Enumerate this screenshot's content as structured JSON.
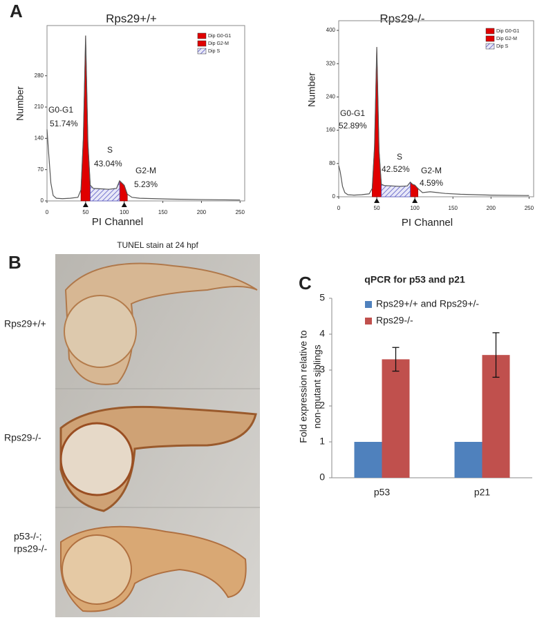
{
  "figure": {
    "panel_labels": [
      "A",
      "B",
      "C"
    ]
  },
  "tunel": {
    "title": "TUNEL stain at 24 hpf",
    "rows": [
      {
        "lines": [
          "Rps29+/+"
        ]
      },
      {
        "lines": [
          "Rps29-/-"
        ]
      },
      {
        "lines": [
          "p53-/-;",
          "rps29-/-"
        ]
      }
    ]
  },
  "chart_data": [
    {
      "type": "line",
      "title": "Rps29+/+",
      "x_label": "PI Channel",
      "y_label": "Number",
      "x": [
        0,
        2,
        5,
        8,
        12,
        20,
        30,
        40,
        44,
        47,
        50,
        53,
        56,
        60,
        70,
        80,
        90,
        94,
        97,
        100,
        104,
        110,
        120,
        140,
        160,
        200,
        250
      ],
      "values": [
        160,
        110,
        40,
        12,
        6,
        5,
        6,
        8,
        25,
        140,
        370,
        130,
        35,
        28,
        27,
        26,
        28,
        45,
        40,
        35,
        15,
        8,
        6,
        5,
        4,
        3,
        2
      ],
      "color": "#555555",
      "xlim": [
        0,
        256
      ],
      "xticks": [
        0,
        50,
        100,
        150,
        200,
        250
      ],
      "ylim": [
        0,
        380
      ],
      "yticks": [
        0,
        70,
        140,
        210,
        280
      ],
      "regions": [
        {
          "name": "Dip G0-G1",
          "color": "#e00000"
        },
        {
          "name": "Dip G2-M",
          "color": "#e00000"
        },
        {
          "name": "Dip S",
          "color": "#5050c0"
        }
      ],
      "annotations": [
        [
          "G0-G1",
          "51.74%"
        ],
        [
          "S",
          "43.04%"
        ],
        [
          "G2-M",
          "5.23%"
        ]
      ]
    },
    {
      "type": "line",
      "title": "Rps29-/-",
      "x_label": "PI Channel",
      "y_label": "Number",
      "x": [
        0,
        2,
        5,
        8,
        12,
        20,
        30,
        40,
        44,
        47,
        50,
        53,
        56,
        60,
        70,
        80,
        90,
        94,
        97,
        100,
        104,
        110,
        120,
        140,
        160,
        200,
        250
      ],
      "values": [
        75,
        60,
        25,
        10,
        5,
        4,
        5,
        7,
        20,
        120,
        360,
        110,
        30,
        27,
        26,
        25,
        26,
        35,
        30,
        28,
        20,
        10,
        12,
        8,
        6,
        4,
        3
      ],
      "color": "#555555",
      "xlim": [
        0,
        256
      ],
      "xticks": [
        0,
        50,
        100,
        150,
        200,
        250
      ],
      "ylim": [
        0,
        410
      ],
      "yticks": [
        0,
        80,
        160,
        240,
        320,
        400
      ],
      "regions": [
        {
          "name": "Dip G0-G1",
          "color": "#e00000"
        },
        {
          "name": "Dip G2-M",
          "color": "#e00000"
        },
        {
          "name": "Dip S",
          "color": "#5050c0"
        }
      ],
      "annotations": [
        [
          "G0-G1",
          "52.89%"
        ],
        [
          "S",
          "42.52%"
        ],
        [
          "G2-M",
          "4.59%"
        ]
      ]
    },
    {
      "type": "bar",
      "title": "qPCR for p53 and p21",
      "y_label": [
        "Fold expression relative to",
        "non-mutant siblings"
      ],
      "categories": [
        "p53",
        "p21"
      ],
      "series": [
        {
          "name": "Rps29+/+ and Rps29+/-",
          "color": "#4f81bd",
          "values": [
            1,
            1
          ]
        },
        {
          "name": "Rps29-/-",
          "color": "#c0504d",
          "values": [
            3.3,
            3.42
          ],
          "errors": [
            0.33,
            0.62
          ]
        }
      ],
      "ylim": [
        0,
        5
      ],
      "yticks": [
        0,
        1,
        2,
        3,
        4,
        5
      ]
    }
  ]
}
